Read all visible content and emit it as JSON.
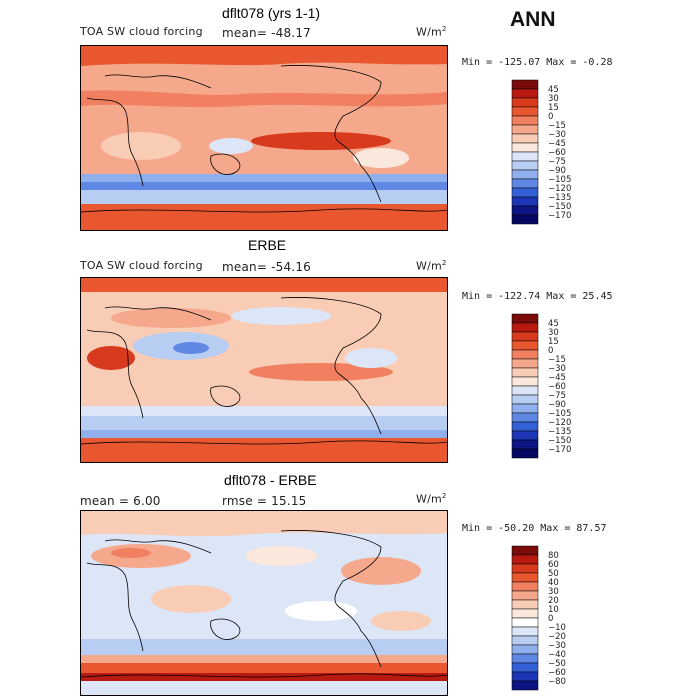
{
  "season": "ANN",
  "colors": {
    "diverging_14": [
      "#7a0b0b",
      "#b81a12",
      "#d83a1e",
      "#e8572f",
      "#f08060",
      "#f5a88c",
      "#f9ccb5",
      "#fbe8dc",
      "#dce6f7",
      "#b8cdf2",
      "#8fb0ec",
      "#5f88e4",
      "#3360d6",
      "#1b35b5",
      "#0c1582",
      "#050863"
    ],
    "diverging_diff": [
      "#7a0b0b",
      "#b81a12",
      "#d83a1e",
      "#e8572f",
      "#f08060",
      "#f5a88c",
      "#f9ccb5",
      "#fbe8dc",
      "#ffffff",
      "#dce6f7",
      "#b8cdf2",
      "#8fb0ec",
      "#5f88e4",
      "#3360d6",
      "#1b35b5",
      "#0c1582"
    ],
    "coastline": "#000000"
  },
  "chart_data": [
    {
      "type": "heatmap",
      "title": "dflt078 (yrs 1-1)",
      "variable": "TOA SW cloud forcing",
      "mean_label": "mean= -48.17",
      "units": "W/m",
      "units_exp": "2",
      "min_max": "Min = -125.07 Max =  -0.28",
      "min": -125.07,
      "max": -0.28,
      "mean": -48.17,
      "colorbar_levels": [
        "45",
        "30",
        "15",
        "0",
        "−15",
        "−30",
        "−45",
        "−60",
        "−75",
        "−90",
        "−105",
        "−120",
        "−135",
        "−150",
        "−170"
      ]
    },
    {
      "type": "heatmap",
      "title": "ERBE",
      "variable": "TOA SW cloud forcing",
      "mean_label": "mean= -54.16",
      "units": "W/m",
      "units_exp": "2",
      "min_max": "Min = -122.74 Max =  25.45",
      "min": -122.74,
      "max": 25.45,
      "mean": -54.16,
      "colorbar_levels": [
        "45",
        "30",
        "15",
        "0",
        "−15",
        "−30",
        "−45",
        "−60",
        "−75",
        "−90",
        "−105",
        "−120",
        "−135",
        "−150",
        "−170"
      ]
    },
    {
      "type": "heatmap",
      "title": "dflt078 - ERBE",
      "mean_label": "mean =    6.00",
      "rmse_label": "rmse =   15.15",
      "units": "W/m",
      "units_exp": "2",
      "min_max": "Min = -50.20 Max =  87.57",
      "min": -50.2,
      "max": 87.57,
      "mean": 6.0,
      "rmse": 15.15,
      "colorbar_levels": [
        "80",
        "60",
        "50",
        "40",
        "30",
        "20",
        "10",
        "0",
        "−10",
        "−20",
        "−30",
        "−40",
        "−50",
        "−60",
        "−80"
      ]
    }
  ]
}
